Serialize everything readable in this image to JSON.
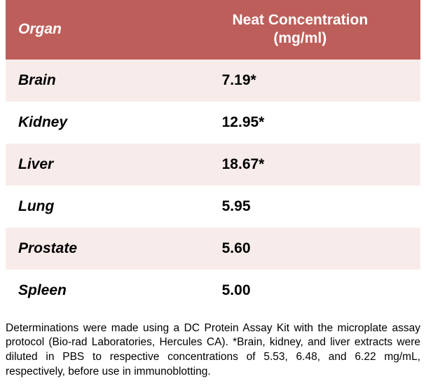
{
  "table": {
    "header": {
      "organ": "Organ",
      "concentration_line1": "Neat Concentration",
      "concentration_line2": "(mg/ml)"
    },
    "rows": [
      {
        "organ": "Brain",
        "value": "7.19*"
      },
      {
        "organ": "Kidney",
        "value": "12.95*"
      },
      {
        "organ": "Liver",
        "value": "18.67*"
      },
      {
        "organ": "Lung",
        "value": "5.95"
      },
      {
        "organ": "Prostate",
        "value": "5.60"
      },
      {
        "organ": "Spleen",
        "value": "5.00"
      }
    ],
    "row_colors": {
      "odd": "#f8eceb",
      "even": "#ffffff"
    },
    "header_bg": "#bd5e5a",
    "header_fg": "#ffffff"
  },
  "caption": "Determinations were made using a DC Protein Assay Kit with the microplate assay protocol (Bio-rad Laboratories, Hercules CA). *Brain, kidney, and liver extracts were diluted in PBS to respective concentrations of 5.53, 6.48, and 6.22 mg/mL, respectively, before use in immunoblotting."
}
